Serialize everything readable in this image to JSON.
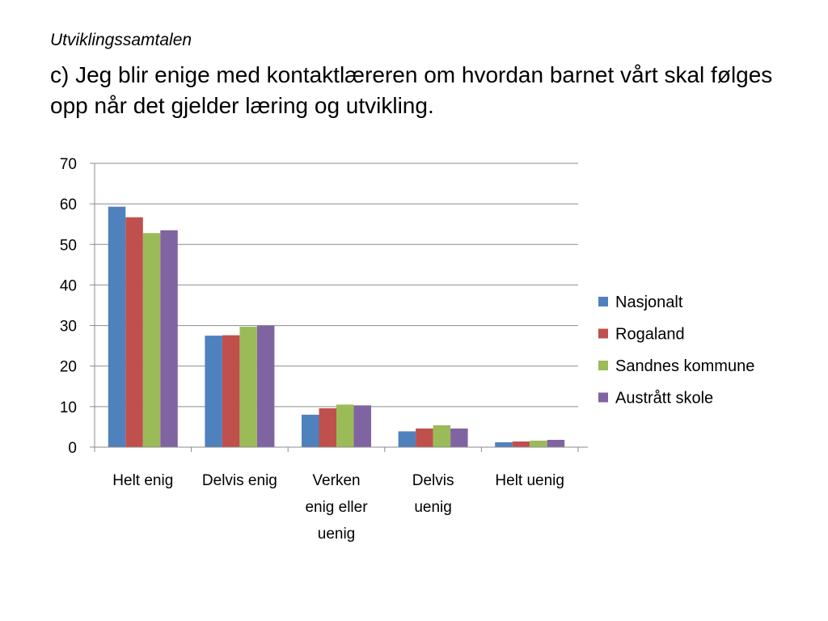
{
  "slide": {
    "subtitle": "Utviklingssamtalen",
    "title": "c) Jeg blir enige med kontaktlæreren om hvordan barnet vårt skal følges opp når det gjelder læring  og utvikling."
  },
  "chart_data": {
    "type": "bar",
    "categories": [
      "Helt enig",
      "Delvis enig",
      "Verken enig eller uenig",
      "Delvis uenig",
      "Helt uenig"
    ],
    "category_lines": [
      [
        "Helt enig"
      ],
      [
        "Delvis enig"
      ],
      [
        "Verken",
        "enig eller",
        "uenig"
      ],
      [
        "Delvis",
        "uenig"
      ],
      [
        "Helt uenig"
      ]
    ],
    "series": [
      {
        "name": "Nasjonalt",
        "color": "#4F81BD",
        "values": [
          59.3,
          27.5,
          8.0,
          3.9,
          1.2
        ]
      },
      {
        "name": "Rogaland",
        "color": "#C0504D",
        "values": [
          56.7,
          27.6,
          9.6,
          4.6,
          1.4
        ]
      },
      {
        "name": "Sandnes kommune",
        "color": "#9BBB59",
        "values": [
          52.8,
          29.7,
          10.5,
          5.4,
          1.6
        ]
      },
      {
        "name": "Austrått skole",
        "color": "#8064A2",
        "values": [
          53.5,
          30.0,
          10.3,
          4.6,
          1.8
        ]
      }
    ],
    "ylim": [
      0,
      70
    ],
    "yticks": [
      0,
      10,
      20,
      30,
      40,
      50,
      60,
      70
    ],
    "grid": true,
    "legend_position": "right",
    "title": "",
    "xlabel": "",
    "ylabel": ""
  }
}
